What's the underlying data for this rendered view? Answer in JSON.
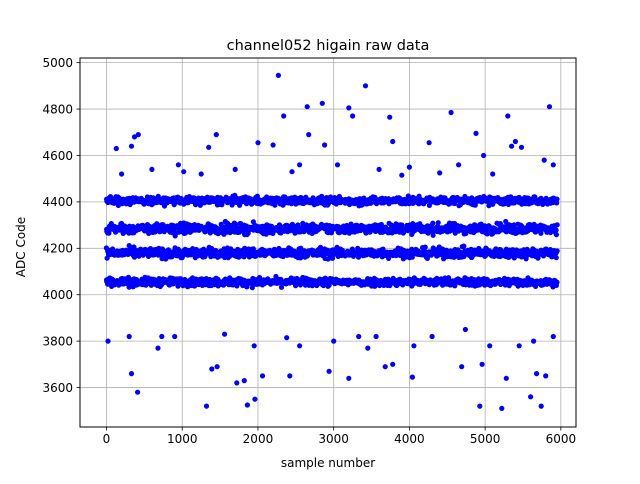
{
  "chart_data": {
    "type": "scatter",
    "title": "channel052 higain raw data",
    "xlabel": "sample number",
    "ylabel": "ADC Code",
    "xlim": [
      -350,
      6200
    ],
    "ylim": [
      3430,
      5020
    ],
    "xticks": [
      0,
      1000,
      2000,
      3000,
      4000,
      5000,
      6000
    ],
    "xtick_labels": [
      "0",
      "1000",
      "2000",
      "3000",
      "4000",
      "5000",
      "6000"
    ],
    "yticks": [
      3600,
      3800,
      4000,
      4200,
      4400,
      4600,
      4800,
      5000
    ],
    "ytick_labels": [
      "3600",
      "3800",
      "4000",
      "4200",
      "4400",
      "4600",
      "4800",
      "5000"
    ],
    "grid": true,
    "marker_color": "#0000ff",
    "sample_range": [
      0,
      5950
    ],
    "dense_bands": [
      {
        "center": 4285,
        "spread": 30
      },
      {
        "center": 4180,
        "spread": 30
      },
      {
        "center": 4405,
        "spread": 25
      },
      {
        "center": 4055,
        "spread": 25
      }
    ],
    "outliers": [
      {
        "x": 2270,
        "y": 4945
      },
      {
        "x": 3420,
        "y": 4900
      },
      {
        "x": 2850,
        "y": 4825
      },
      {
        "x": 2650,
        "y": 4810
      },
      {
        "x": 3200,
        "y": 4805
      },
      {
        "x": 5850,
        "y": 4810
      },
      {
        "x": 4550,
        "y": 4785
      },
      {
        "x": 3250,
        "y": 4770
      },
      {
        "x": 2340,
        "y": 4770
      },
      {
        "x": 3740,
        "y": 4765
      },
      {
        "x": 5300,
        "y": 4770
      },
      {
        "x": 4880,
        "y": 4695
      },
      {
        "x": 420,
        "y": 4690
      },
      {
        "x": 1450,
        "y": 4690
      },
      {
        "x": 2670,
        "y": 4690
      },
      {
        "x": 370,
        "y": 4680
      },
      {
        "x": 5400,
        "y": 4660
      },
      {
        "x": 3780,
        "y": 4660
      },
      {
        "x": 2000,
        "y": 4655
      },
      {
        "x": 4260,
        "y": 4655
      },
      {
        "x": 130,
        "y": 4630
      },
      {
        "x": 330,
        "y": 4640
      },
      {
        "x": 2200,
        "y": 4645
      },
      {
        "x": 2880,
        "y": 4645
      },
      {
        "x": 5350,
        "y": 4640
      },
      {
        "x": 5480,
        "y": 4635
      },
      {
        "x": 1350,
        "y": 4635
      },
      {
        "x": 4980,
        "y": 4600
      },
      {
        "x": 4650,
        "y": 4560
      },
      {
        "x": 5780,
        "y": 4580
      },
      {
        "x": 2550,
        "y": 4560
      },
      {
        "x": 3050,
        "y": 4560
      },
      {
        "x": 950,
        "y": 4560
      },
      {
        "x": 1700,
        "y": 4540
      },
      {
        "x": 4000,
        "y": 4550
      },
      {
        "x": 5900,
        "y": 4560
      },
      {
        "x": 1020,
        "y": 4530
      },
      {
        "x": 4400,
        "y": 4525
      },
      {
        "x": 3600,
        "y": 4540
      },
      {
        "x": 200,
        "y": 4520
      },
      {
        "x": 2450,
        "y": 4530
      },
      {
        "x": 5100,
        "y": 4520
      },
      {
        "x": 1250,
        "y": 4520
      },
      {
        "x": 3900,
        "y": 4515
      },
      {
        "x": 600,
        "y": 4540
      },
      {
        "x": 4300,
        "y": 3820
      },
      {
        "x": 1560,
        "y": 3830
      },
      {
        "x": 900,
        "y": 3820
      },
      {
        "x": 2380,
        "y": 3815
      },
      {
        "x": 3330,
        "y": 3820
      },
      {
        "x": 4740,
        "y": 3850
      },
      {
        "x": 5640,
        "y": 3800
      },
      {
        "x": 300,
        "y": 3820
      },
      {
        "x": 5900,
        "y": 3820
      },
      {
        "x": 1950,
        "y": 3780
      },
      {
        "x": 3000,
        "y": 3800
      },
      {
        "x": 5060,
        "y": 3780
      },
      {
        "x": 680,
        "y": 3770
      },
      {
        "x": 4060,
        "y": 3780
      },
      {
        "x": 2550,
        "y": 3780
      },
      {
        "x": 5450,
        "y": 3780
      },
      {
        "x": 1460,
        "y": 3690
      },
      {
        "x": 330,
        "y": 3660
      },
      {
        "x": 1390,
        "y": 3680
      },
      {
        "x": 2940,
        "y": 3670
      },
      {
        "x": 5680,
        "y": 3660
      },
      {
        "x": 2420,
        "y": 3650
      },
      {
        "x": 4040,
        "y": 3645
      },
      {
        "x": 3200,
        "y": 3640
      },
      {
        "x": 2060,
        "y": 3650
      },
      {
        "x": 1820,
        "y": 3630
      },
      {
        "x": 1720,
        "y": 3620
      },
      {
        "x": 4960,
        "y": 3700
      },
      {
        "x": 5280,
        "y": 3640
      },
      {
        "x": 410,
        "y": 3580
      },
      {
        "x": 1960,
        "y": 3550
      },
      {
        "x": 5600,
        "y": 3560
      },
      {
        "x": 1320,
        "y": 3520
      },
      {
        "x": 1860,
        "y": 3525
      },
      {
        "x": 4930,
        "y": 3520
      },
      {
        "x": 5220,
        "y": 3510
      },
      {
        "x": 5740,
        "y": 3520
      },
      {
        "x": 3780,
        "y": 3700
      },
      {
        "x": 4690,
        "y": 3690
      },
      {
        "x": 3680,
        "y": 3690
      },
      {
        "x": 5800,
        "y": 3650
      },
      {
        "x": 730,
        "y": 3820
      },
      {
        "x": 20,
        "y": 3800
      },
      {
        "x": 3450,
        "y": 3770
      },
      {
        "x": 3560,
        "y": 3820
      }
    ]
  }
}
